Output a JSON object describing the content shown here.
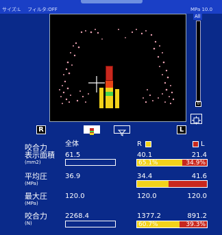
{
  "status": {
    "size": "サイズ:L",
    "filter": "フィルタ:OFF",
    "scale_max": "MPa 10.0",
    "slider_all": "All",
    "slider_min": "0"
  },
  "toolbar": {
    "right_label": "R",
    "left_label": "L"
  },
  "legend": {
    "overall": "全体",
    "right": "R",
    "left": "L"
  },
  "metrics": [
    {
      "label": "咬合力",
      "label2": "表示面積",
      "unit": "(mm2)",
      "overall": "61.5",
      "right": "40.1",
      "left": "21.4",
      "right_pct": "65.1%",
      "left_pct": "34.9%",
      "right_frac": 0.651
    },
    {
      "label": "平均圧",
      "unit": "(MPa)",
      "overall": "36.9",
      "right": "34.4",
      "left": "41.6",
      "right_frac": 0.45
    },
    {
      "label": "最大圧",
      "unit": "(MPa)",
      "overall": "120.0",
      "right": "120.0",
      "left": "120.0"
    },
    {
      "label": "咬合力",
      "unit": "(N)",
      "overall": "2268.4",
      "right": "1377.2",
      "left": "891.2",
      "right_pct": "60.7%",
      "left_pct": "39.3%",
      "right_frac": 0.607
    }
  ],
  "colors": {
    "right": "#f2d21a",
    "left": "#c8281e",
    "bg": "#0a2a8a"
  }
}
